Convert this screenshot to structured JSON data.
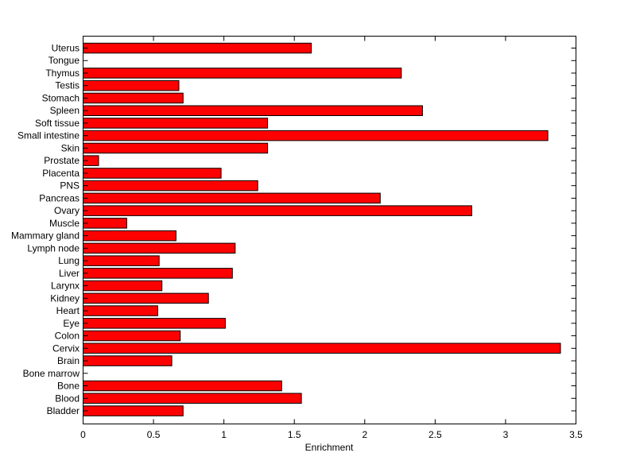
{
  "chart_data": {
    "type": "bar",
    "orientation": "horizontal",
    "categories": [
      "Uterus",
      "Tongue",
      "Thymus",
      "Testis",
      "Stomach",
      "Spleen",
      "Soft tissue",
      "Small intestine",
      "Skin",
      "Prostate",
      "Placenta",
      "PNS",
      "Pancreas",
      "Ovary",
      "Muscle",
      "Mammary gland",
      "Lymph node",
      "Lung",
      "Liver",
      "Larynx",
      "Kidney",
      "Heart",
      "Eye",
      "Colon",
      "Cervix",
      "Brain",
      "Bone marrow",
      "Bone",
      "Blood",
      "Bladder"
    ],
    "values": [
      1.62,
      0.0,
      2.26,
      0.68,
      0.71,
      2.41,
      1.31,
      3.3,
      1.31,
      0.11,
      0.98,
      1.24,
      2.11,
      2.76,
      0.31,
      0.66,
      1.08,
      0.54,
      1.06,
      0.56,
      0.89,
      0.53,
      1.01,
      0.69,
      3.39,
      0.63,
      0.0,
      1.41,
      1.55,
      0.71
    ],
    "title": "",
    "xlabel": "Enrichment",
    "ylabel": "",
    "xlim": [
      0,
      3.5
    ],
    "xticks": [
      0,
      0.5,
      1,
      1.5,
      2,
      2.5,
      3,
      3.5
    ],
    "xtick_labels": [
      "0",
      "0.5",
      "1",
      "1.5",
      "2",
      "2.5",
      "3",
      "3.5"
    ],
    "bar_color": "#ff0000",
    "grid": false,
    "legend": "none"
  }
}
